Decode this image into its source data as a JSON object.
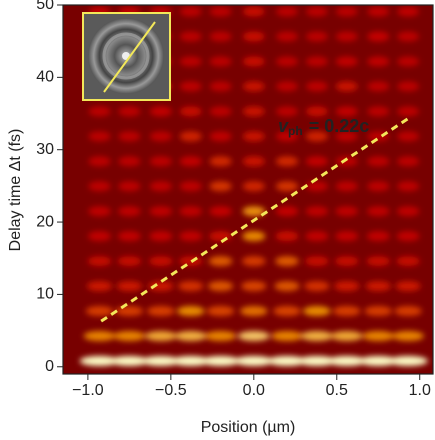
{
  "chart_data": {
    "type": "line",
    "xlabel": "Position (µm)",
    "ylabel": "Delay time Δt (fs)",
    "xlim": [
      -1.15,
      1.08
    ],
    "ylim": [
      -1,
      50
    ],
    "xticks": [
      {
        "value": -1.0,
        "label": "−1.0"
      },
      {
        "value": -0.5,
        "label": "−0.5"
      },
      {
        "value": 0.0,
        "label": "0.0"
      },
      {
        "value": 0.5,
        "label": "0.5"
      },
      {
        "value": 1.0,
        "label": "1.0"
      }
    ],
    "yticks": [
      0,
      10,
      20,
      30,
      40,
      50
    ],
    "series": [
      {
        "color": "#f3e85a",
        "dashed": true,
        "x": [
          -0.92,
          0.93
        ],
        "values": [
          6.3,
          34.3
        ]
      }
    ],
    "annotation": {
      "symbol": "v",
      "subscript": "ph",
      "text": "= 0.22c",
      "color": "#f3e85a"
    }
  }
}
